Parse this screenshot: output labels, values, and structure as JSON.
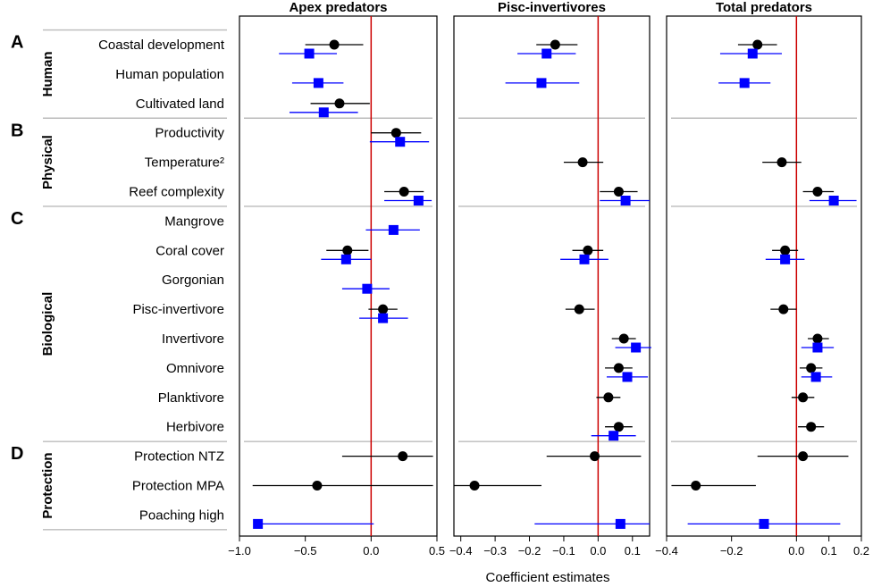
{
  "chart_data": {
    "type": "scatter",
    "xlabel": "Coefficient estimates",
    "rows": [
      "Coastal development",
      "Human population",
      "Cultivated land",
      "Productivity",
      "Temperature²",
      "Reef complexity",
      "Mangrove",
      "Coral cover",
      "Gorgonian",
      "Pisc-invertivore",
      "Invertivore",
      "Omnivore",
      "Planktivore",
      "Herbivore",
      "Protection NTZ",
      "Protection MPA",
      "Poaching high"
    ],
    "groups": [
      {
        "letter": "A",
        "label": "Human",
        "rows": [
          0,
          2
        ]
      },
      {
        "letter": "B",
        "label": "Physical",
        "rows": [
          3,
          5
        ]
      },
      {
        "letter": "C",
        "label": "Biological",
        "rows": [
          6,
          13
        ]
      },
      {
        "letter": "D",
        "label": "Protection",
        "rows": [
          14,
          16
        ]
      }
    ],
    "series_colors": {
      "black": "#000000",
      "blue": "#0000ff",
      "reference_line": "#cc0000",
      "separator": "#bbbbbb"
    },
    "panels": [
      {
        "title": "Apex predators",
        "xlim": [
          -1.0,
          0.5
        ],
        "xticks": [
          -1.0,
          -0.5,
          0.0,
          0.5
        ],
        "xtick_labels": [
          "−1.0",
          "−0.5",
          "0.0",
          "0.5"
        ],
        "black": [
          {
            "row": 0,
            "est": -0.28,
            "lo": -0.5,
            "hi": -0.06
          },
          {
            "row": 2,
            "est": -0.24,
            "lo": -0.46,
            "hi": -0.01
          },
          {
            "row": 3,
            "est": 0.19,
            "lo": 0.0,
            "hi": 0.38
          },
          {
            "row": 5,
            "est": 0.25,
            "lo": 0.1,
            "hi": 0.4
          },
          {
            "row": 7,
            "est": -0.18,
            "lo": -0.34,
            "hi": -0.02
          },
          {
            "row": 9,
            "est": 0.09,
            "lo": -0.02,
            "hi": 0.2
          },
          {
            "row": 14,
            "est": 0.24,
            "lo": -0.22,
            "hi": 0.47
          },
          {
            "row": 15,
            "est": -0.41,
            "lo": -0.9,
            "hi": 0.47
          }
        ],
        "blue": [
          {
            "row": 0,
            "est": -0.47,
            "lo": -0.7,
            "hi": -0.26
          },
          {
            "row": 1,
            "est": -0.4,
            "lo": -0.6,
            "hi": -0.21
          },
          {
            "row": 2,
            "est": -0.36,
            "lo": -0.62,
            "hi": -0.1
          },
          {
            "row": 3,
            "est": 0.22,
            "lo": -0.01,
            "hi": 0.44
          },
          {
            "row": 5,
            "est": 0.36,
            "lo": 0.1,
            "hi": 0.46
          },
          {
            "row": 6,
            "est": 0.17,
            "lo": -0.04,
            "hi": 0.37
          },
          {
            "row": 7,
            "est": -0.19,
            "lo": -0.38,
            "hi": 0.0
          },
          {
            "row": 8,
            "est": -0.03,
            "lo": -0.22,
            "hi": 0.14
          },
          {
            "row": 9,
            "est": 0.09,
            "lo": -0.09,
            "hi": 0.28
          },
          {
            "row": 16,
            "est": -0.86,
            "lo": -0.87,
            "hi": 0.02
          }
        ]
      },
      {
        "title": "Pisc-invertivores",
        "xlim": [
          -0.42,
          0.15
        ],
        "xticks": [
          -0.4,
          -0.3,
          -0.2,
          -0.1,
          0.0,
          0.1
        ],
        "xtick_labels": [
          "−0.4",
          "−0.3",
          "−0.2",
          "−0.1",
          "0.0",
          "0.1"
        ],
        "black": [
          {
            "row": 0,
            "est": -0.125,
            "lo": -0.18,
            "hi": -0.06
          },
          {
            "row": 4,
            "est": -0.045,
            "lo": -0.1,
            "hi": 0.015
          },
          {
            "row": 5,
            "est": 0.06,
            "lo": 0.005,
            "hi": 0.115
          },
          {
            "row": 7,
            "est": -0.03,
            "lo": -0.075,
            "hi": 0.015
          },
          {
            "row": 9,
            "est": -0.055,
            "lo": -0.095,
            "hi": -0.01
          },
          {
            "row": 10,
            "est": 0.075,
            "lo": 0.04,
            "hi": 0.11
          },
          {
            "row": 11,
            "est": 0.06,
            "lo": 0.02,
            "hi": 0.1
          },
          {
            "row": 12,
            "est": 0.03,
            "lo": -0.005,
            "hi": 0.065
          },
          {
            "row": 13,
            "est": 0.06,
            "lo": 0.02,
            "hi": 0.1
          },
          {
            "row": 14,
            "est": -0.01,
            "lo": -0.15,
            "hi": 0.125
          },
          {
            "row": 15,
            "est": -0.36,
            "lo": -0.42,
            "hi": -0.165
          }
        ],
        "blue": [
          {
            "row": 0,
            "est": -0.15,
            "lo": -0.235,
            "hi": -0.065
          },
          {
            "row": 1,
            "est": -0.165,
            "lo": -0.27,
            "hi": -0.055
          },
          {
            "row": 5,
            "est": 0.08,
            "lo": 0.005,
            "hi": 0.15
          },
          {
            "row": 7,
            "est": -0.04,
            "lo": -0.11,
            "hi": 0.03
          },
          {
            "row": 10,
            "est": 0.11,
            "lo": 0.05,
            "hi": 0.155
          },
          {
            "row": 11,
            "est": 0.085,
            "lo": 0.025,
            "hi": 0.145
          },
          {
            "row": 13,
            "est": 0.045,
            "lo": -0.02,
            "hi": 0.11
          },
          {
            "row": 16,
            "est": 0.065,
            "lo": -0.185,
            "hi": 0.15
          }
        ]
      },
      {
        "title": "Total predators",
        "xlim": [
          -0.4,
          0.2
        ],
        "xticks": [
          -0.4,
          -0.2,
          0.0,
          0.1,
          0.2
        ],
        "xtick_labels": [
          "−0.4",
          "−0.2",
          "0.0",
          "0.1",
          "0.2"
        ],
        "black": [
          {
            "row": 0,
            "est": -0.12,
            "lo": -0.18,
            "hi": -0.06
          },
          {
            "row": 4,
            "est": -0.045,
            "lo": -0.105,
            "hi": 0.015
          },
          {
            "row": 5,
            "est": 0.065,
            "lo": 0.02,
            "hi": 0.115
          },
          {
            "row": 7,
            "est": -0.035,
            "lo": -0.075,
            "hi": 0.005
          },
          {
            "row": 9,
            "est": -0.04,
            "lo": -0.08,
            "hi": 0.0
          },
          {
            "row": 10,
            "est": 0.065,
            "lo": 0.035,
            "hi": 0.1
          },
          {
            "row": 11,
            "est": 0.045,
            "lo": 0.01,
            "hi": 0.08
          },
          {
            "row": 12,
            "est": 0.02,
            "lo": -0.015,
            "hi": 0.055
          },
          {
            "row": 13,
            "est": 0.045,
            "lo": 0.005,
            "hi": 0.085
          },
          {
            "row": 14,
            "est": 0.02,
            "lo": -0.12,
            "hi": 0.16
          },
          {
            "row": 15,
            "est": -0.31,
            "lo": -0.385,
            "hi": -0.125
          }
        ],
        "blue": [
          {
            "row": 0,
            "est": -0.135,
            "lo": -0.235,
            "hi": -0.045
          },
          {
            "row": 1,
            "est": -0.16,
            "lo": -0.24,
            "hi": -0.08
          },
          {
            "row": 5,
            "est": 0.115,
            "lo": 0.04,
            "hi": 0.185
          },
          {
            "row": 7,
            "est": -0.035,
            "lo": -0.095,
            "hi": 0.025
          },
          {
            "row": 10,
            "est": 0.065,
            "lo": 0.015,
            "hi": 0.115
          },
          {
            "row": 11,
            "est": 0.06,
            "lo": 0.015,
            "hi": 0.11
          },
          {
            "row": 16,
            "est": -0.1,
            "lo": -0.335,
            "hi": 0.135
          }
        ]
      }
    ]
  }
}
